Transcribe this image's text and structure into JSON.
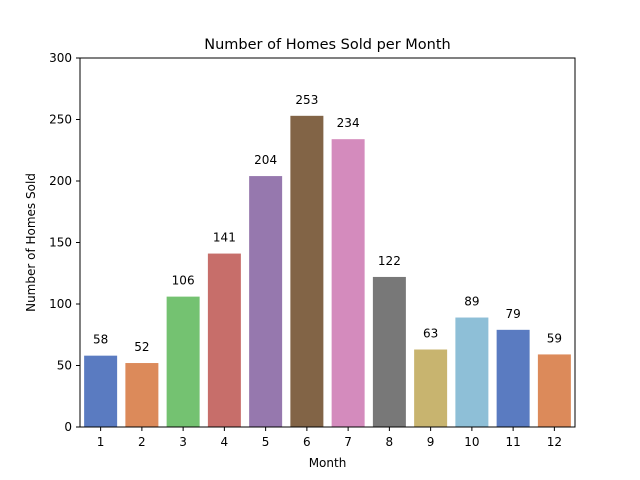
{
  "chart_data": {
    "type": "bar",
    "title": "Number of Homes Sold per Month",
    "xlabel": "Month",
    "ylabel": "Number of Homes Sold",
    "categories": [
      "1",
      "2",
      "3",
      "4",
      "5",
      "6",
      "7",
      "8",
      "9",
      "10",
      "11",
      "12"
    ],
    "values": [
      58,
      52,
      106,
      141,
      204,
      253,
      234,
      122,
      63,
      89,
      79,
      59
    ],
    "ylim": [
      0,
      300
    ],
    "yticks": [
      0,
      50,
      100,
      150,
      200,
      250,
      300
    ],
    "grid": false,
    "data_labels": true,
    "colors": [
      "#5a7bc1",
      "#dc8a5a",
      "#74c271",
      "#c76e6a",
      "#9678ae",
      "#826446",
      "#d48bbd",
      "#787878",
      "#c8b46f",
      "#8ebfd7",
      "#5a7bc1",
      "#dc8a5a"
    ]
  }
}
